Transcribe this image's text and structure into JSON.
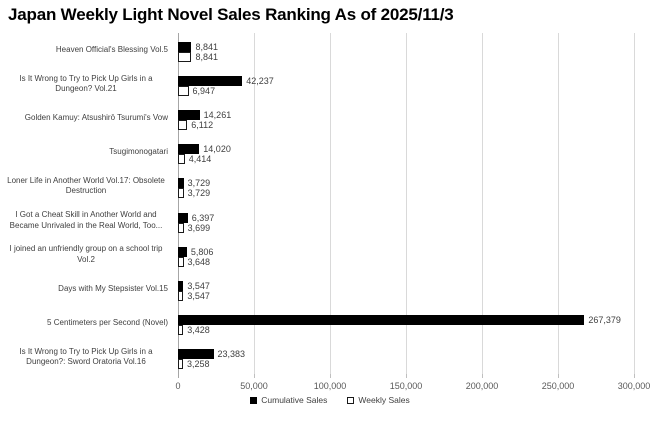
{
  "title": "Japan Weekly Light Novel Sales Ranking As of 2025/11/3",
  "colors": {
    "cumulative_bar": "#000000",
    "weekly_bar_fill": "#ffffff",
    "weekly_bar_border": "#1a1a1a",
    "gridline": "#d9d9d9",
    "axis_line": "#a6a6a6",
    "text": "#404040",
    "tick_text": "#595959"
  },
  "legend": {
    "cumulative_label": "Cumulative Sales",
    "weekly_label": "Weekly Sales"
  },
  "chart_data": {
    "type": "bar",
    "orientation": "horizontal",
    "title": "Japan Weekly Light Novel Sales Ranking As of 2025/11/3",
    "categories": [
      "Heaven Official's Blessing Vol.5",
      "Is It Wrong to Try to Pick Up Girls in a Dungeon? Vol.21",
      "Golden Kamuy: Atsushirō Tsurumi's Vow",
      "Tsugimonogatari",
      "Loner Life in Another World Vol.17: Obsolete Destruction",
      "I Got a Cheat Skill in Another World and Became Unrivaled in the Real World, Too...",
      "I joined an unfriendly group on a school trip Vol.2",
      "Days with My Stepsister Vol.15",
      "5 Centimeters per Second (Novel)",
      "Is It Wrong to Try to Pick Up Girls in a Dungeon?: Sword Oratoria Vol.16"
    ],
    "series": [
      {
        "name": "Cumulative Sales",
        "color": "#000000",
        "values": [
          8841,
          42237,
          14261,
          14020,
          3729,
          6397,
          5806,
          3547,
          267379,
          23383
        ],
        "labels": [
          "8,841",
          "42,237",
          "14,261",
          "14,020",
          "3,729",
          "6,397",
          "5,806",
          "3,547",
          "267,379",
          "23,383"
        ]
      },
      {
        "name": "Weekly Sales",
        "color": "#ffffff",
        "values": [
          8841,
          6947,
          6112,
          4414,
          3729,
          3699,
          3648,
          3547,
          3428,
          3258
        ],
        "labels": [
          "8,841",
          "6,947",
          "6,112",
          "4,414",
          "3,729",
          "3,699",
          "3,648",
          "3,547",
          "3,428",
          "3,258"
        ]
      }
    ],
    "xlim": [
      0,
      300000
    ],
    "x_ticks": [
      0,
      50000,
      100000,
      150000,
      200000,
      250000,
      300000
    ],
    "x_tick_labels": [
      "0",
      "50,000",
      "100,000",
      "150,000",
      "200,000",
      "250,000",
      "300,000"
    ],
    "grid": true,
    "data_labels": true,
    "legend_position": "bottom"
  }
}
